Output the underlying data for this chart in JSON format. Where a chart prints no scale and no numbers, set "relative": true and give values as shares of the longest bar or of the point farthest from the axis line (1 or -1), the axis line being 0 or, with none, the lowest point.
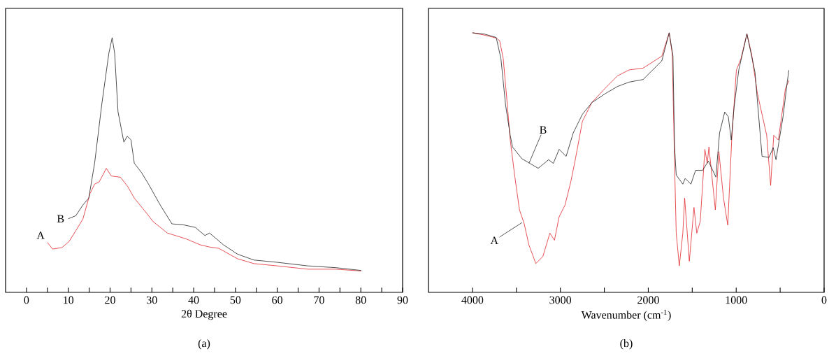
{
  "chart_data": [
    {
      "type": "line",
      "title": "(a)",
      "xlabel": "2θ Degree",
      "relative": true,
      "tick_labels": "x",
      "xlim": [
        -5,
        90
      ],
      "xticks": [
        0,
        {
          "value": 5,
          "label": null
        },
        10,
        {
          "value": 15,
          "label": null
        },
        20,
        {
          "value": 25,
          "label": null
        },
        30,
        {
          "value": 35,
          "label": null
        },
        40,
        {
          "value": 45,
          "label": null
        },
        50,
        {
          "value": 55,
          "label": null
        },
        60,
        {
          "value": 65,
          "label": null
        },
        70,
        {
          "value": 75,
          "label": null
        },
        80,
        {
          "value": 85,
          "label": null
        },
        90
      ],
      "series": [
        {
          "color": "#e0262b",
          "x": [
            5,
            6.25,
            8.5,
            10.2,
            11.8,
            13.5,
            15.2,
            16.3,
            17.4,
            19.1,
            20.3,
            22.5,
            24.2,
            25.8,
            28.1,
            30.3,
            33.7,
            38.2,
            41.5,
            43.8,
            46.0,
            50.5,
            54.4,
            60.0,
            67.3,
            74.0,
            80.1
          ],
          "values": [
            0.196,
            0.17,
            0.176,
            0.2,
            0.242,
            0.288,
            0.388,
            0.425,
            0.434,
            0.487,
            0.457,
            0.452,
            0.416,
            0.37,
            0.324,
            0.278,
            0.233,
            0.21,
            0.187,
            0.178,
            0.173,
            0.132,
            0.113,
            0.104,
            0.091,
            0.091,
            0.084
          ]
        },
        {
          "color": "#222222",
          "x": [
            10.0,
            11.8,
            13.5,
            14.9,
            16.3,
            18.0,
            19.7,
            20.5,
            21.1,
            21.9,
            23.3,
            24.1,
            25.0,
            25.8,
            27.5,
            29.2,
            32.0,
            34.8,
            37.6,
            40.4,
            42.7,
            43.8,
            47.1,
            50.5,
            54.4,
            60.0,
            67.3,
            74.0,
            80.1
          ],
          "values": [
            0.289,
            0.301,
            0.343,
            0.37,
            0.507,
            0.736,
            0.938,
            1.0,
            0.938,
            0.709,
            0.59,
            0.613,
            0.599,
            0.507,
            0.471,
            0.425,
            0.343,
            0.269,
            0.265,
            0.255,
            0.223,
            0.233,
            0.187,
            0.15,
            0.127,
            0.118,
            0.104,
            0.097,
            0.086
          ]
        }
      ],
      "annotations": [
        {
          "text": "A",
          "x": 5,
          "y": 0.196
        },
        {
          "text": "B",
          "x": 10.0,
          "y": 0.289
        }
      ]
    },
    {
      "type": "line",
      "title": "(b)",
      "xlabel": "Wavenumber (cm$^{-1}$)",
      "relative": true,
      "tick_labels": "x",
      "xlim": [
        4500,
        0
      ],
      "xticks": [
        4000,
        {
          "value": 3500,
          "label": null
        },
        3000,
        {
          "value": 2500,
          "label": null
        },
        2000,
        {
          "value": 1500,
          "label": null
        },
        1000,
        {
          "value": 500,
          "label": null
        },
        0
      ],
      "series": [
        {
          "color": "#e0262b",
          "x": [
            4000,
            3862,
            3730,
            3690,
            3650,
            3610,
            3570,
            3517,
            3465,
            3411,
            3358,
            3279,
            3199,
            3119,
            3067,
            3014,
            2947,
            2881,
            2828,
            2749,
            2642,
            2483,
            2351,
            2218,
            2059,
            1846,
            1762,
            1727,
            1701,
            1682,
            1647,
            1607,
            1586,
            1533,
            1480,
            1448,
            1409,
            1356,
            1329,
            1310,
            1237,
            1197,
            1144,
            1096,
            1051,
            998,
            945,
            878,
            825,
            759,
            653,
            608,
            573,
            520,
            440,
            400
          ],
          "values": [
            1.0,
            0.991,
            0.98,
            0.969,
            0.901,
            0.749,
            0.587,
            0.444,
            0.318,
            0.264,
            0.183,
            0.111,
            0.138,
            0.228,
            0.201,
            0.291,
            0.336,
            0.426,
            0.515,
            0.659,
            0.731,
            0.789,
            0.834,
            0.857,
            0.864,
            0.91,
            1.0,
            0.919,
            0.497,
            0.228,
            0.102,
            0.228,
            0.363,
            0.12,
            0.327,
            0.228,
            0.273,
            0.551,
            0.497,
            0.56,
            0.318,
            0.542,
            0.363,
            0.259,
            0.587,
            0.856,
            0.901,
            0.996,
            0.919,
            0.767,
            0.605,
            0.412,
            0.605,
            0.587,
            0.785,
            0.816
          ]
        },
        {
          "color": "#222222",
          "x": [
            4000,
            3862,
            3730,
            3676,
            3623,
            3570,
            3544,
            3438,
            3252,
            3133,
            3080,
            3014,
            2934,
            2854,
            2749,
            2642,
            2483,
            2351,
            2218,
            2059,
            1846,
            1762,
            1719,
            1701,
            1682,
            1607,
            1580,
            1515,
            1462,
            1382,
            1316,
            1231,
            1189,
            1130,
            1090,
            1056,
            1024,
            971,
            878,
            786,
            706,
            626,
            579,
            547,
            467,
            419,
            400
          ],
          "values": [
            1.0,
            0.995,
            0.982,
            0.901,
            0.722,
            0.605,
            0.56,
            0.515,
            0.478,
            0.511,
            0.497,
            0.551,
            0.524,
            0.614,
            0.686,
            0.731,
            0.767,
            0.793,
            0.81,
            0.82,
            0.892,
            1.0,
            0.91,
            0.56,
            0.452,
            0.417,
            0.439,
            0.417,
            0.47,
            0.47,
            0.506,
            0.444,
            0.614,
            0.695,
            0.677,
            0.587,
            0.713,
            0.856,
            0.996,
            0.848,
            0.524,
            0.52,
            0.558,
            0.511,
            0.677,
            0.811,
            0.856
          ]
        }
      ],
      "annotations": [
        {
          "text": "A",
          "x": 3435,
          "y": 0.269
        },
        {
          "text": "B",
          "x": 3356,
          "y": 0.498
        }
      ]
    }
  ]
}
